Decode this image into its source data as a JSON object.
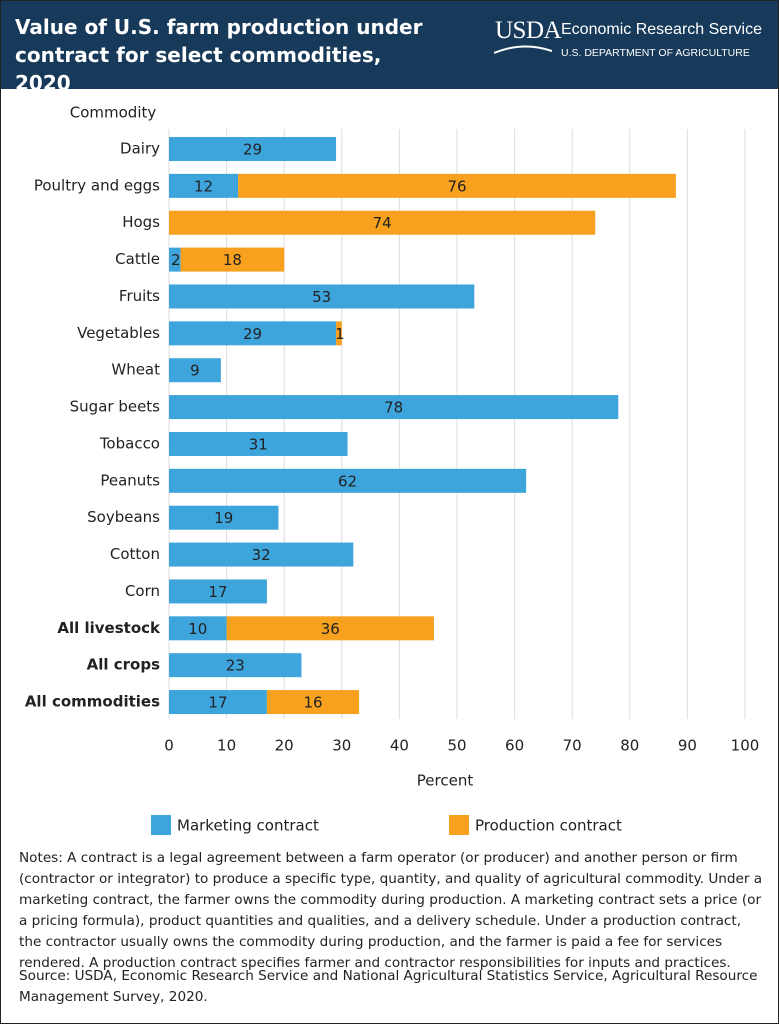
{
  "header": {
    "logo": "USDA",
    "agency": "Economic Research Service",
    "department": "U.S. DEPARTMENT OF AGRICULTURE"
  },
  "chart_data": {
    "type": "bar",
    "orientation": "horizontal",
    "stacked": true,
    "title": "Value of U.S. farm production under contract for select commodities, 2020",
    "y_label": "Commodity",
    "x_label": "Percent",
    "categories": [
      "Dairy",
      "Poultry and eggs",
      "Hogs",
      "Cattle",
      "Fruits",
      "Vegetables",
      "Wheat",
      "Sugar beets",
      "Tobacco",
      "Peanuts",
      "Soybeans",
      "Cotton",
      "Corn",
      "All livestock",
      "All crops",
      "All commodities"
    ],
    "series": [
      {
        "name": "Marketing contract",
        "color": "#3ea4dc",
        "values": [
          29,
          12,
          null,
          2,
          53,
          29,
          9,
          78,
          31,
          62,
          19,
          32,
          17,
          10,
          23,
          17
        ]
      },
      {
        "name": "Production contract",
        "color": "#f7a11e",
        "values": [
          null,
          76,
          74,
          18,
          null,
          1,
          null,
          null,
          null,
          null,
          null,
          null,
          null,
          36,
          null,
          16
        ]
      }
    ],
    "xlim": [
      0,
      100
    ],
    "xticks": [
      0,
      10,
      20,
      30,
      40,
      50,
      60,
      70,
      80,
      90,
      100
    ],
    "grid": true,
    "legend": "bottom"
  },
  "notes": "Notes: A contract is a legal agreement between a farm operator (or producer) and another person or firm (contractor or integrator) to produce a specific type, quantity, and quality of agricultural commodity. Under a marketing contract, the farmer owns the commodity during production. A marketing contract sets a price (or a pricing formula), product quantities and qualities, and a delivery schedule. Under a production contract, the contractor usually owns the commodity during production, and the farmer is paid a fee for services rendered. A production contract specifies farmer and contractor responsibilities for inputs and practices.",
  "source": "Source: USDA, Economic Research Service and National Agricultural Statistics Service, Agricultural Resource Management Survey, 2020."
}
